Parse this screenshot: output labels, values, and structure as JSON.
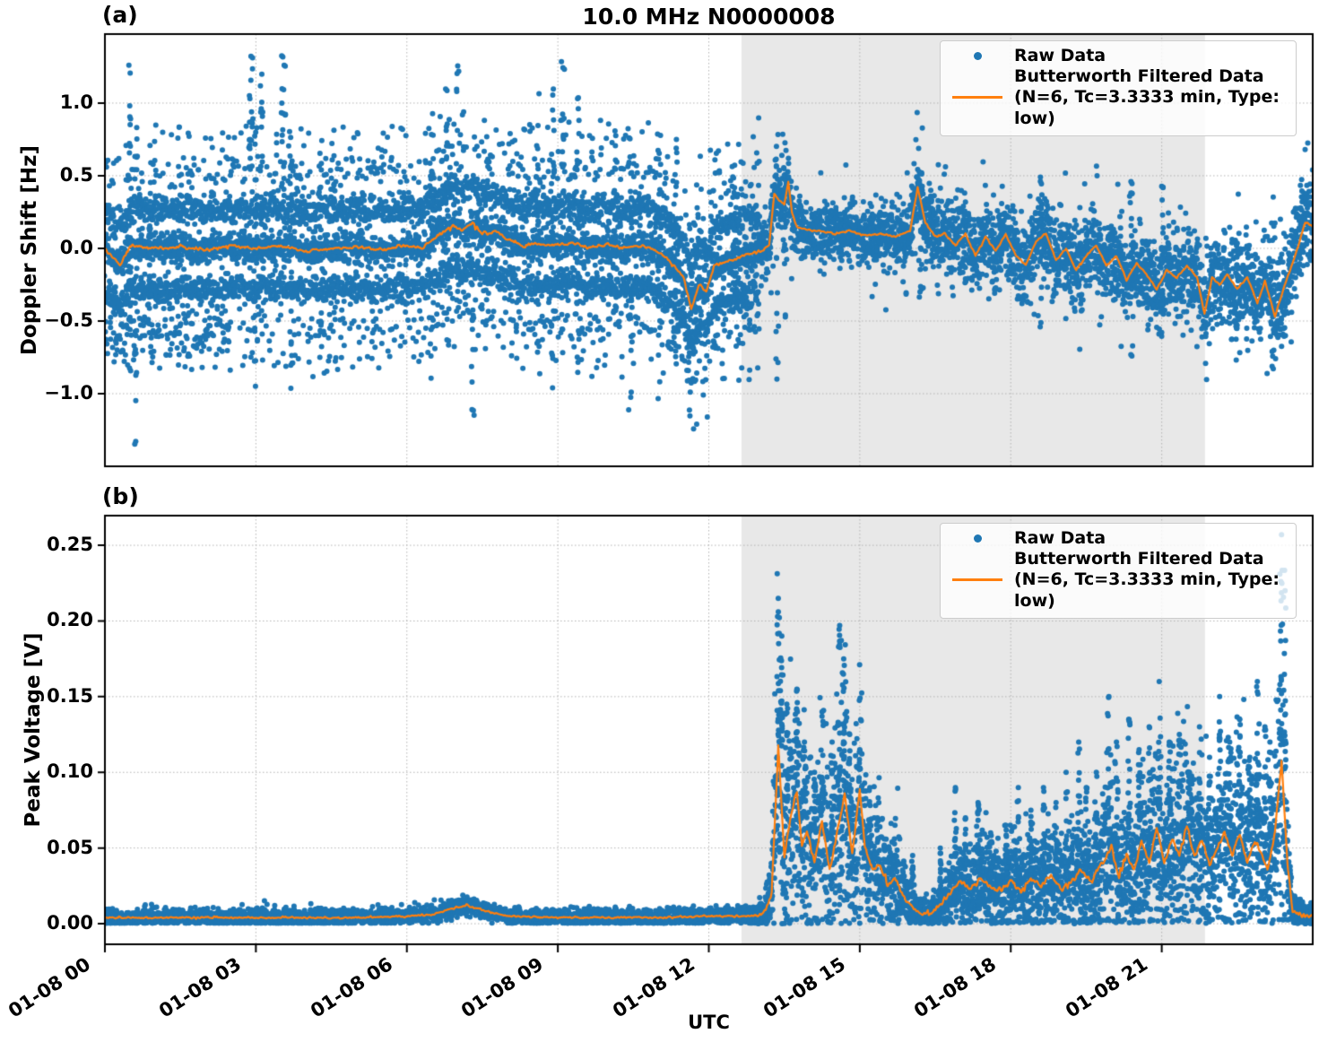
{
  "figure": {
    "title": "10.0 MHz N0000008",
    "xlabel": "UTC"
  },
  "colors": {
    "raw": "#1f77b4",
    "filtered": "#ff7f0e",
    "shade": "#e8e8e8",
    "grid": "#b3b3b3",
    "spine": "#000000",
    "legend_border": "#cccccc"
  },
  "chart_data": [
    {
      "type": "scatter",
      "panel_label": "(a)",
      "title": "10.0 MHz N0000008",
      "ylabel": "Doppler Shift [Hz]",
      "ylim": [
        -1.5,
        1.475
      ],
      "x_range_hours": [
        0,
        24
      ],
      "x_tick_hours": [
        0,
        3,
        6,
        9,
        12,
        15,
        18,
        21
      ],
      "x_tick_labels": [
        "01-08 00",
        "01-08 03",
        "01-08 06",
        "01-08 09",
        "01-08 12",
        "01-08 15",
        "01-08 18",
        "01-08 21"
      ],
      "y_ticks": [
        1.0,
        0.5,
        0.0,
        -0.5,
        -1.0
      ],
      "y_tick_labels": [
        "1.0",
        "0.5",
        "0.0",
        "−0.5",
        "−1.0"
      ],
      "grid": true,
      "shaded_span_hours": [
        12.65,
        21.86
      ],
      "legend": {
        "position": "upper right",
        "raw_label": "Raw Data",
        "filtered_label": "Butterworth Filtered Data",
        "filtered_sublabel": "(N=6, Tc=3.3333 min, Type: low)"
      },
      "filtered_line": {
        "t": [
          0,
          0.3,
          0.5,
          1,
          1.5,
          2,
          2.5,
          3,
          3.5,
          4,
          4.5,
          5,
          5.5,
          6,
          6.3,
          6.6,
          6.9,
          7.1,
          7.3,
          7.5,
          7.8,
          8.0,
          8.3,
          8.6,
          9,
          9.3,
          9.6,
          10,
          10.3,
          10.6,
          10.9,
          11.1,
          11.3,
          11.5,
          11.65,
          11.8,
          11.95,
          12.1,
          12.3,
          12.5,
          12.7,
          12.9,
          13.05,
          13.2,
          13.3,
          13.4,
          13.5,
          13.58,
          13.65,
          13.75,
          13.9,
          14.2,
          14.5,
          14.8,
          15.1,
          15.4,
          15.7,
          16.0,
          16.15,
          16.3,
          16.5,
          16.7,
          16.9,
          17.1,
          17.3,
          17.5,
          17.7,
          17.9,
          18.1,
          18.3,
          18.5,
          18.7,
          18.9,
          19.1,
          19.3,
          19.5,
          19.7,
          19.9,
          20.1,
          20.3,
          20.5,
          20.7,
          20.9,
          21.1,
          21.3,
          21.5,
          21.7,
          21.85,
          22.0,
          22.15,
          22.3,
          22.5,
          22.7,
          22.9,
          23.05,
          23.25,
          23.4,
          23.55,
          23.7,
          23.85,
          24
        ],
        "v": [
          0,
          -0.12,
          0.02,
          0,
          0.01,
          -0.01,
          0.02,
          0,
          0.02,
          -0.02,
          0,
          0.01,
          -0.01,
          0.02,
          0,
          0.08,
          0.16,
          0.12,
          0.18,
          0.1,
          0.12,
          0.06,
          0.02,
          0.03,
          0.02,
          0.04,
          0,
          0.03,
          0,
          0.02,
          0,
          -0.05,
          -0.12,
          -0.2,
          -0.42,
          -0.25,
          -0.3,
          -0.12,
          -0.1,
          -0.08,
          -0.05,
          -0.03,
          -0.02,
          0.02,
          0.38,
          0.33,
          0.3,
          0.46,
          0.25,
          0.15,
          0.13,
          0.12,
          0.1,
          0.12,
          0.09,
          0.1,
          0.08,
          0.12,
          0.42,
          0.18,
          0.08,
          0.1,
          0.02,
          0.1,
          -0.05,
          0.08,
          -0.02,
          0.1,
          -0.05,
          -0.12,
          0.05,
          0.1,
          -0.08,
          0,
          -0.15,
          -0.05,
          0.02,
          -0.12,
          -0.05,
          -0.22,
          -0.1,
          -0.18,
          -0.28,
          -0.15,
          -0.2,
          -0.12,
          -0.2,
          -0.45,
          -0.2,
          -0.25,
          -0.18,
          -0.28,
          -0.2,
          -0.38,
          -0.22,
          -0.47,
          -0.3,
          -0.15,
          0,
          0.18,
          0.15
        ],
        "jitter_amp_pre13": 0.024,
        "jitter_amp_post13": 0.013
      },
      "raw_scatter": {
        "structured_until_hour": 13,
        "core": {
          "sd": 0.05,
          "per_min": 3
        },
        "bands": [
          [
            0.26,
            0.05,
            2
          ],
          [
            -0.28,
            0.05,
            2
          ],
          [
            0.52,
            0.07,
            0.45
          ],
          [
            -0.54,
            0.07,
            0.45
          ],
          [
            0.77,
            0.055,
            0.12
          ],
          [
            -0.78,
            0.055,
            0.12
          ]
        ],
        "inter_band": {
          "rate": 0.35,
          "range": 0.76
        },
        "early_low_fill": {
          "until_hour": 2.5,
          "rate": 0.8,
          "lo": -0.75,
          "hi": -0.3
        },
        "pre_transition_tail": {
          "from_hour": 11.3,
          "rate": 0.8,
          "depth": 0.55
        },
        "post": {
          "per_min": 5,
          "sd_segments": [
            [
              13,
              16,
              0.1
            ],
            [
              16,
              21,
              0.13
            ],
            [
              21,
              24,
              0.15
            ]
          ],
          "outlier_rate": 0.15,
          "outlier_span": 1.15
        },
        "outlier_columns": [
          [
            0.5,
            -0.9,
            1.3
          ],
          [
            0.62,
            -1.35,
            0.9
          ],
          [
            0.9,
            -0.6,
            0.6
          ],
          [
            2.9,
            0.5,
            1.35
          ],
          [
            3.0,
            -1.0,
            1.3
          ],
          [
            3.12,
            -0.75,
            1.2
          ],
          [
            3.55,
            0.4,
            1.35
          ],
          [
            3.7,
            -1.05,
            0.8
          ],
          [
            4.3,
            -0.85,
            0.85
          ],
          [
            4.55,
            -0.6,
            0.9
          ],
          [
            6.5,
            -1.1,
            1.0
          ],
          [
            6.8,
            -0.7,
            1.3
          ],
          [
            7.0,
            -0.45,
            1.32
          ],
          [
            7.3,
            -1.25,
            0.75
          ],
          [
            7.6,
            -0.6,
            0.9
          ],
          [
            8.6,
            -0.8,
            1.1
          ],
          [
            8.9,
            -1.0,
            1.25
          ],
          [
            9.1,
            -0.5,
            1.3
          ],
          [
            9.4,
            -0.9,
            1.2
          ],
          [
            10.15,
            -0.7,
            0.8
          ],
          [
            10.45,
            -1.15,
            0.8
          ],
          [
            11.0,
            -1.2,
            0.75
          ],
          [
            11.35,
            -0.8,
            0.8
          ],
          [
            12.5,
            -0.7,
            0.6
          ],
          [
            13.35,
            -0.9,
            0.85
          ],
          [
            13.5,
            -0.5,
            0.8
          ],
          [
            16.2,
            -0.55,
            0.6
          ],
          [
            18.6,
            -0.7,
            0.6
          ],
          [
            20.4,
            -0.75,
            0.5
          ],
          [
            21.0,
            -0.6,
            0.45
          ],
          [
            22.5,
            -0.8,
            0.4
          ],
          [
            23.2,
            -0.85,
            0.4
          ]
        ]
      }
    },
    {
      "type": "scatter",
      "panel_label": "(b)",
      "xlabel": "UTC",
      "ylabel": "Peak Voltage [V]",
      "ylim": [
        -0.0136,
        0.2696
      ],
      "x_range_hours": [
        0,
        24
      ],
      "x_tick_hours": [
        0,
        3,
        6,
        9,
        12,
        15,
        18,
        21
      ],
      "x_tick_labels": [
        "01-08 00",
        "01-08 03",
        "01-08 06",
        "01-08 09",
        "01-08 12",
        "01-08 15",
        "01-08 18",
        "01-08 21"
      ],
      "y_ticks": [
        0.25,
        0.2,
        0.15,
        0.1,
        0.05,
        0.0
      ],
      "y_tick_labels": [
        "0.25",
        "0.20",
        "0.15",
        "0.10",
        "0.05",
        "0.00"
      ],
      "grid": true,
      "shaded_span_hours": [
        12.65,
        21.86
      ],
      "legend": {
        "position": "upper right",
        "raw_label": "Raw Data",
        "filtered_label": "Butterworth Filtered Data",
        "filtered_sublabel": "(N=6, Tc=3.3333 min, Type: low)"
      },
      "filtered_line": {
        "t": [
          0,
          1,
          2,
          3,
          4,
          5,
          6,
          6.5,
          6.9,
          7.2,
          7.5,
          8,
          9,
          10,
          11,
          12,
          12.8,
          13.1,
          13.25,
          13.38,
          13.5,
          13.62,
          13.75,
          13.85,
          13.95,
          14.1,
          14.25,
          14.4,
          14.55,
          14.7,
          14.85,
          15.0,
          15.1,
          15.25,
          15.4,
          15.55,
          15.7,
          15.85,
          16.0,
          16.2,
          16.4,
          16.6,
          16.8,
          17.0,
          17.2,
          17.4,
          17.6,
          17.8,
          18.0,
          18.2,
          18.4,
          18.6,
          18.8,
          19.0,
          19.2,
          19.4,
          19.6,
          19.8,
          20.0,
          20.15,
          20.3,
          20.45,
          20.6,
          20.75,
          20.9,
          21.05,
          21.2,
          21.35,
          21.5,
          21.65,
          21.8,
          21.95,
          22.1,
          22.25,
          22.4,
          22.55,
          22.7,
          22.85,
          23.0,
          23.1,
          23.25,
          23.38,
          23.5,
          23.6,
          23.8,
          24
        ],
        "v": [
          0.004,
          0.004,
          0.004,
          0.004,
          0.004,
          0.004,
          0.005,
          0.006,
          0.01,
          0.012,
          0.009,
          0.005,
          0.004,
          0.004,
          0.004,
          0.005,
          0.005,
          0.006,
          0.02,
          0.118,
          0.045,
          0.07,
          0.088,
          0.05,
          0.062,
          0.04,
          0.068,
          0.035,
          0.06,
          0.085,
          0.045,
          0.09,
          0.05,
          0.035,
          0.04,
          0.025,
          0.03,
          0.02,
          0.012,
          0.007,
          0.006,
          0.012,
          0.02,
          0.028,
          0.022,
          0.03,
          0.025,
          0.022,
          0.028,
          0.022,
          0.03,
          0.025,
          0.032,
          0.022,
          0.028,
          0.035,
          0.028,
          0.04,
          0.05,
          0.03,
          0.045,
          0.035,
          0.055,
          0.04,
          0.065,
          0.04,
          0.055,
          0.045,
          0.065,
          0.045,
          0.055,
          0.04,
          0.05,
          0.06,
          0.045,
          0.06,
          0.04,
          0.055,
          0.045,
          0.035,
          0.06,
          0.108,
          0.04,
          0.008,
          0.005,
          0.005
        ],
        "jitter_amp_quiet": 0.0012,
        "jitter_amp_active": 0.004
      },
      "raw_scatter": {
        "quiet_until_hour": 12.9,
        "quiet": {
          "sd": 0.0028,
          "per_min": 4
        },
        "active": {
          "per_min": 6,
          "rel_sd": 0.55,
          "abs_sd": 0.004
        },
        "outlier_columns": [
          [
            13.38,
            0.215
          ],
          [
            13.45,
            0.19
          ],
          [
            13.55,
            0.145
          ],
          [
            13.75,
            0.155
          ],
          [
            13.9,
            0.12
          ],
          [
            14.1,
            0.1
          ],
          [
            14.25,
            0.14
          ],
          [
            14.45,
            0.12
          ],
          [
            14.6,
            0.197
          ],
          [
            14.68,
            0.175
          ],
          [
            14.8,
            0.125
          ],
          [
            15.0,
            0.115
          ],
          [
            15.2,
            0.09
          ],
          [
            16.05,
            0.045
          ],
          [
            16.6,
            0.05
          ],
          [
            16.9,
            0.09
          ],
          [
            17.1,
            0.07
          ],
          [
            17.35,
            0.08
          ],
          [
            17.6,
            0.06
          ],
          [
            17.9,
            0.065
          ],
          [
            18.15,
            0.09
          ],
          [
            18.4,
            0.075
          ],
          [
            18.65,
            0.09
          ],
          [
            18.9,
            0.08
          ],
          [
            19.1,
            0.1
          ],
          [
            19.35,
            0.12
          ],
          [
            19.5,
            0.09
          ],
          [
            19.7,
            0.1
          ],
          [
            19.95,
            0.15
          ],
          [
            20.1,
            0.12
          ],
          [
            20.35,
            0.135
          ],
          [
            20.55,
            0.115
          ],
          [
            20.75,
            0.13
          ],
          [
            20.95,
            0.16
          ],
          [
            21.15,
            0.12
          ],
          [
            21.35,
            0.125
          ],
          [
            21.55,
            0.1
          ],
          [
            21.75,
            0.13
          ],
          [
            21.95,
            0.11
          ],
          [
            22.15,
            0.15
          ],
          [
            22.35,
            0.12
          ],
          [
            22.55,
            0.135
          ],
          [
            22.75,
            0.11
          ],
          [
            22.9,
            0.16
          ],
          [
            23.05,
            0.13
          ],
          [
            23.15,
            0.12
          ],
          [
            23.38,
            0.257
          ],
          [
            23.45,
            0.22
          ]
        ]
      }
    }
  ]
}
